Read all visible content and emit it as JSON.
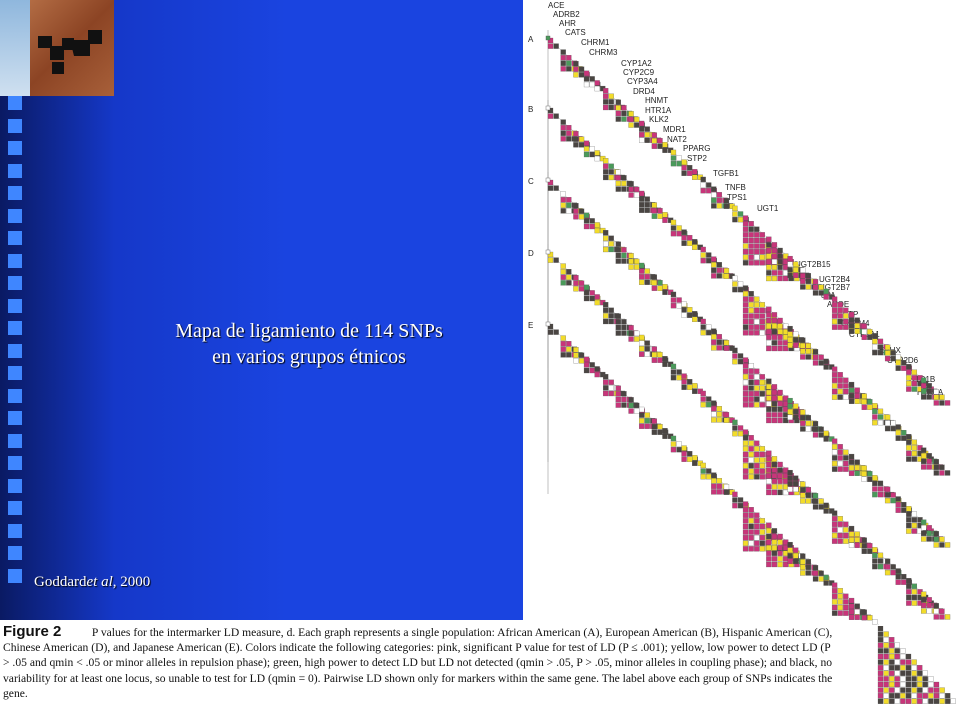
{
  "slide": {
    "caption_line1": "Mapa de ligamiento de 114 SNPs",
    "caption_line2": "en varios grupos étnicos",
    "credit_author": "Goddard",
    "credit_etal": "et al",
    "credit_year": ", 2000"
  },
  "figure": {
    "label": "Figure 2",
    "caption": "P values for the intermarker LD measure, d. Each graph represents a single population: African American (A), European American (B), Hispanic American (C), Chinese American (D), and Japanese American (E). Colors indicate the following categories: pink, significant P value for test of LD (P ≤ .001); yellow, low power to detect LD (P > .05 and qmin < .05 or minor alleles in repulsion phase); green, high power to detect LD but LD not detected (qmin > .05, P > .05, minor alleles in coupling phase); and black, no variability for at least one locus, so unable to test for LD (qmin = 0). Pairwise LD shown only for markers within the same gene. The label above each group of SNPs indicates the gene.",
    "population_labels": [
      "A",
      "B",
      "C",
      "D",
      "E"
    ],
    "genes": [
      "ACE",
      "ADRB2",
      "AHR",
      "CATS",
      "CHRM1",
      "CHRM3",
      "CYP1A2",
      "CYP2C9",
      "CYP3A4",
      "DRD4",
      "HNMT",
      "HTR1A",
      "KLK2",
      "MDR1",
      "NAT2",
      "PPARG",
      "STP2",
      "TGFB1",
      "TNFB",
      "TPS1",
      "UGT1",
      "UGT2B15",
      "UGT2B4",
      "UGT2B7",
      "uPA",
      "APOE",
      "CETP",
      "CHRM4",
      "CYP1A1",
      "EPHX",
      "CYP2D6",
      "HTR1B",
      "HTR2A"
    ],
    "colors": {
      "pink": "#c8357a",
      "yellow": "#f2dc2a",
      "green": "#4a9a5a",
      "black": "#4a4542",
      "white": "#ffffff"
    }
  }
}
